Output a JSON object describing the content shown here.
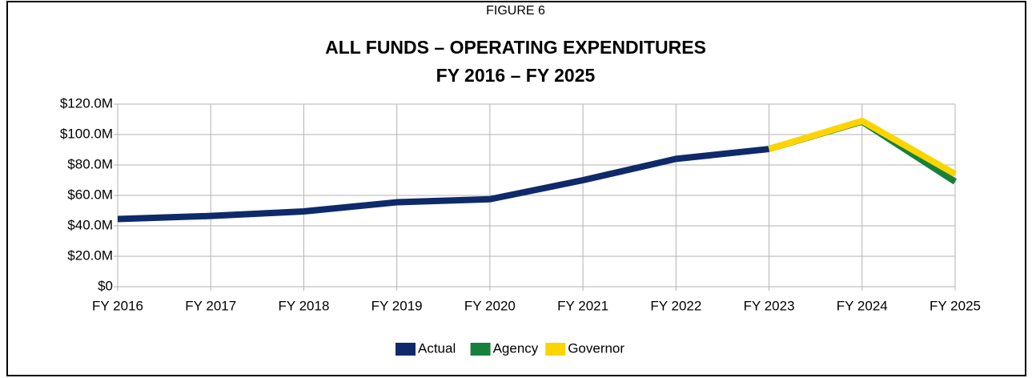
{
  "chart_data": {
    "type": "line",
    "figure_label": "FIGURE 6",
    "title": "ALL FUNDS – OPERATING EXPENDITURES",
    "subtitle": "FY 2016 – FY 2025",
    "categories": [
      "FY 2016",
      "FY 2017",
      "FY 2018",
      "FY 2019",
      "FY 2020",
      "FY 2021",
      "FY 2022",
      "FY 2023",
      "FY 2024",
      "FY 2025"
    ],
    "series": [
      {
        "name": "Actual",
        "color": "#0f2a6b",
        "values": [
          44500000,
          46500000,
          49500000,
          55500000,
          57500000,
          70000000,
          84000000,
          90500000,
          null,
          null
        ]
      },
      {
        "name": "Agency",
        "color": "#17803d",
        "values": [
          null,
          null,
          null,
          null,
          null,
          null,
          null,
          90500000,
          108500000,
          69000000
        ]
      },
      {
        "name": "Governor",
        "color": "#fcd500",
        "values": [
          null,
          null,
          null,
          null,
          null,
          null,
          null,
          90500000,
          109000000,
          74000000
        ]
      }
    ],
    "ylim": [
      0,
      120000000
    ],
    "yticks": [
      {
        "value": 0,
        "label": "$0"
      },
      {
        "value": 20000000,
        "label": "$20.0M"
      },
      {
        "value": 40000000,
        "label": "$40.0M"
      },
      {
        "value": 60000000,
        "label": "$60.0M"
      },
      {
        "value": 80000000,
        "label": "$80.0M"
      },
      {
        "value": 100000000,
        "label": "$100.0M"
      },
      {
        "value": 120000000,
        "label": "$120.0M"
      }
    ],
    "grid": true,
    "legend": "bottom"
  }
}
